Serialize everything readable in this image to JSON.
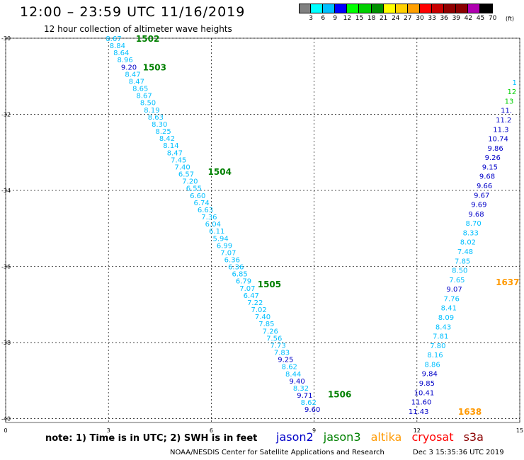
{
  "title": "12:00 – 23:59 UTC 11/16/2019",
  "subtitle": "12 hour collection of altimeter wave heights",
  "colorbar": {
    "colors": [
      "#808080",
      "#00ffff",
      "#00bfff",
      "#0000ff",
      "#00ff00",
      "#00d000",
      "#009000",
      "#ffff00",
      "#ffd000",
      "#ff9f00",
      "#ff0000",
      "#c80000",
      "#900000",
      "#8b0000",
      "#b000b0",
      "#000000"
    ],
    "labels": [
      "3",
      "6",
      "9",
      "12",
      "15",
      "18",
      "21",
      "24",
      "27",
      "30",
      "33",
      "36",
      "39",
      "42",
      "45",
      "70"
    ],
    "unit": "(ft)"
  },
  "axes": {
    "x_ticks": [
      "0",
      "3",
      "6",
      "9",
      "12",
      "15"
    ],
    "y_ticks": [
      "-30",
      "-32",
      "-34",
      "-36",
      "-38",
      "-40"
    ]
  },
  "colors": {
    "jason2": "#0000c8",
    "jason3": "#008000",
    "altika": "#ff9900",
    "cryosat": "#ff0000",
    "s3a": "#8b0000",
    "low": "#00bfff",
    "mid": "#0000c8",
    "mid2": "#00008b",
    "grid": "#000000"
  },
  "note": "note:  1) Time is in UTC;  2) SWH is in feet",
  "legend": {
    "jason2": "jason2",
    "jason3": "jason3",
    "altika": "altika",
    "cryosat": "cryosat",
    "s3a": "s3a"
  },
  "credit": "NOAA/NESDIS Center for Satellite Applications and Research",
  "timestamp": "Dec  3 15:35:36 UTC 2019",
  "track_labels": [
    {
      "text": "1502",
      "lon": 3.8,
      "lat": -30.0,
      "color": "jason3"
    },
    {
      "text": "1503",
      "lon": 4.0,
      "lat": -30.75,
      "color": "jason3"
    },
    {
      "text": "1504",
      "lon": 5.9,
      "lat": -33.5,
      "color": "jason3"
    },
    {
      "text": "1505",
      "lon": 7.35,
      "lat": -36.45,
      "color": "jason3"
    },
    {
      "text": "1506",
      "lon": 9.4,
      "lat": -39.35,
      "color": "jason3"
    },
    {
      "text": "1637",
      "lon": 14.3,
      "lat": -36.4,
      "color": "altika"
    },
    {
      "text": "1638",
      "lon": 13.2,
      "lat": -39.8,
      "color": "altika"
    }
  ],
  "track_a": {
    "lon_start": 3.15,
    "lat_start": -30.0,
    "lon_end": 8.95,
    "lat_end": -39.75,
    "values": [
      "8.67",
      "8.84",
      "8.64",
      "8.96",
      "9.20",
      "8.47",
      "8.47",
      "8.65",
      "8.67",
      "8.50",
      "8.19",
      "8.63",
      "8.30",
      "8.25",
      "8.42",
      "8.14",
      "8.47",
      "7.45",
      "7.40",
      "6.57",
      "7.20",
      "6.55",
      "6.60",
      "6.74",
      "6.63",
      "7.36",
      "6.04",
      "6.11",
      "5.94",
      "6.99",
      "7.07",
      "6.36",
      "6.36",
      "6.85",
      "6.79",
      "7.07",
      "6.47",
      "7.22",
      "7.02",
      "7.40",
      "7.85",
      "7.26",
      "7.56",
      "7.73",
      "7.83",
      "9.25",
      "8.62",
      "8.44",
      "9.40",
      "8.32",
      "9.71",
      "8.62",
      "9.60"
    ]
  },
  "track_b": {
    "lon_start": 14.85,
    "lat_start": -31.15,
    "lon_end": 12.05,
    "lat_end": -39.8,
    "values": [
      "1",
      "12",
      "13",
      "11.",
      "11.2",
      "11.3",
      "10.74",
      "9.86",
      "9.26",
      "9.15",
      "9.68",
      "9.66",
      "9.67",
      "9.69",
      "9.68",
      "8.70",
      "8.33",
      "8.02",
      "7.48",
      "7.85",
      "8.50",
      "7.65",
      "9.07",
      "7.76",
      "8.41",
      "8.09",
      "8.43",
      "7.81",
      "7.80",
      "8.16",
      "8.86",
      "9.84",
      "9.85",
      "10.41",
      "11.60",
      "11.43"
    ]
  }
}
